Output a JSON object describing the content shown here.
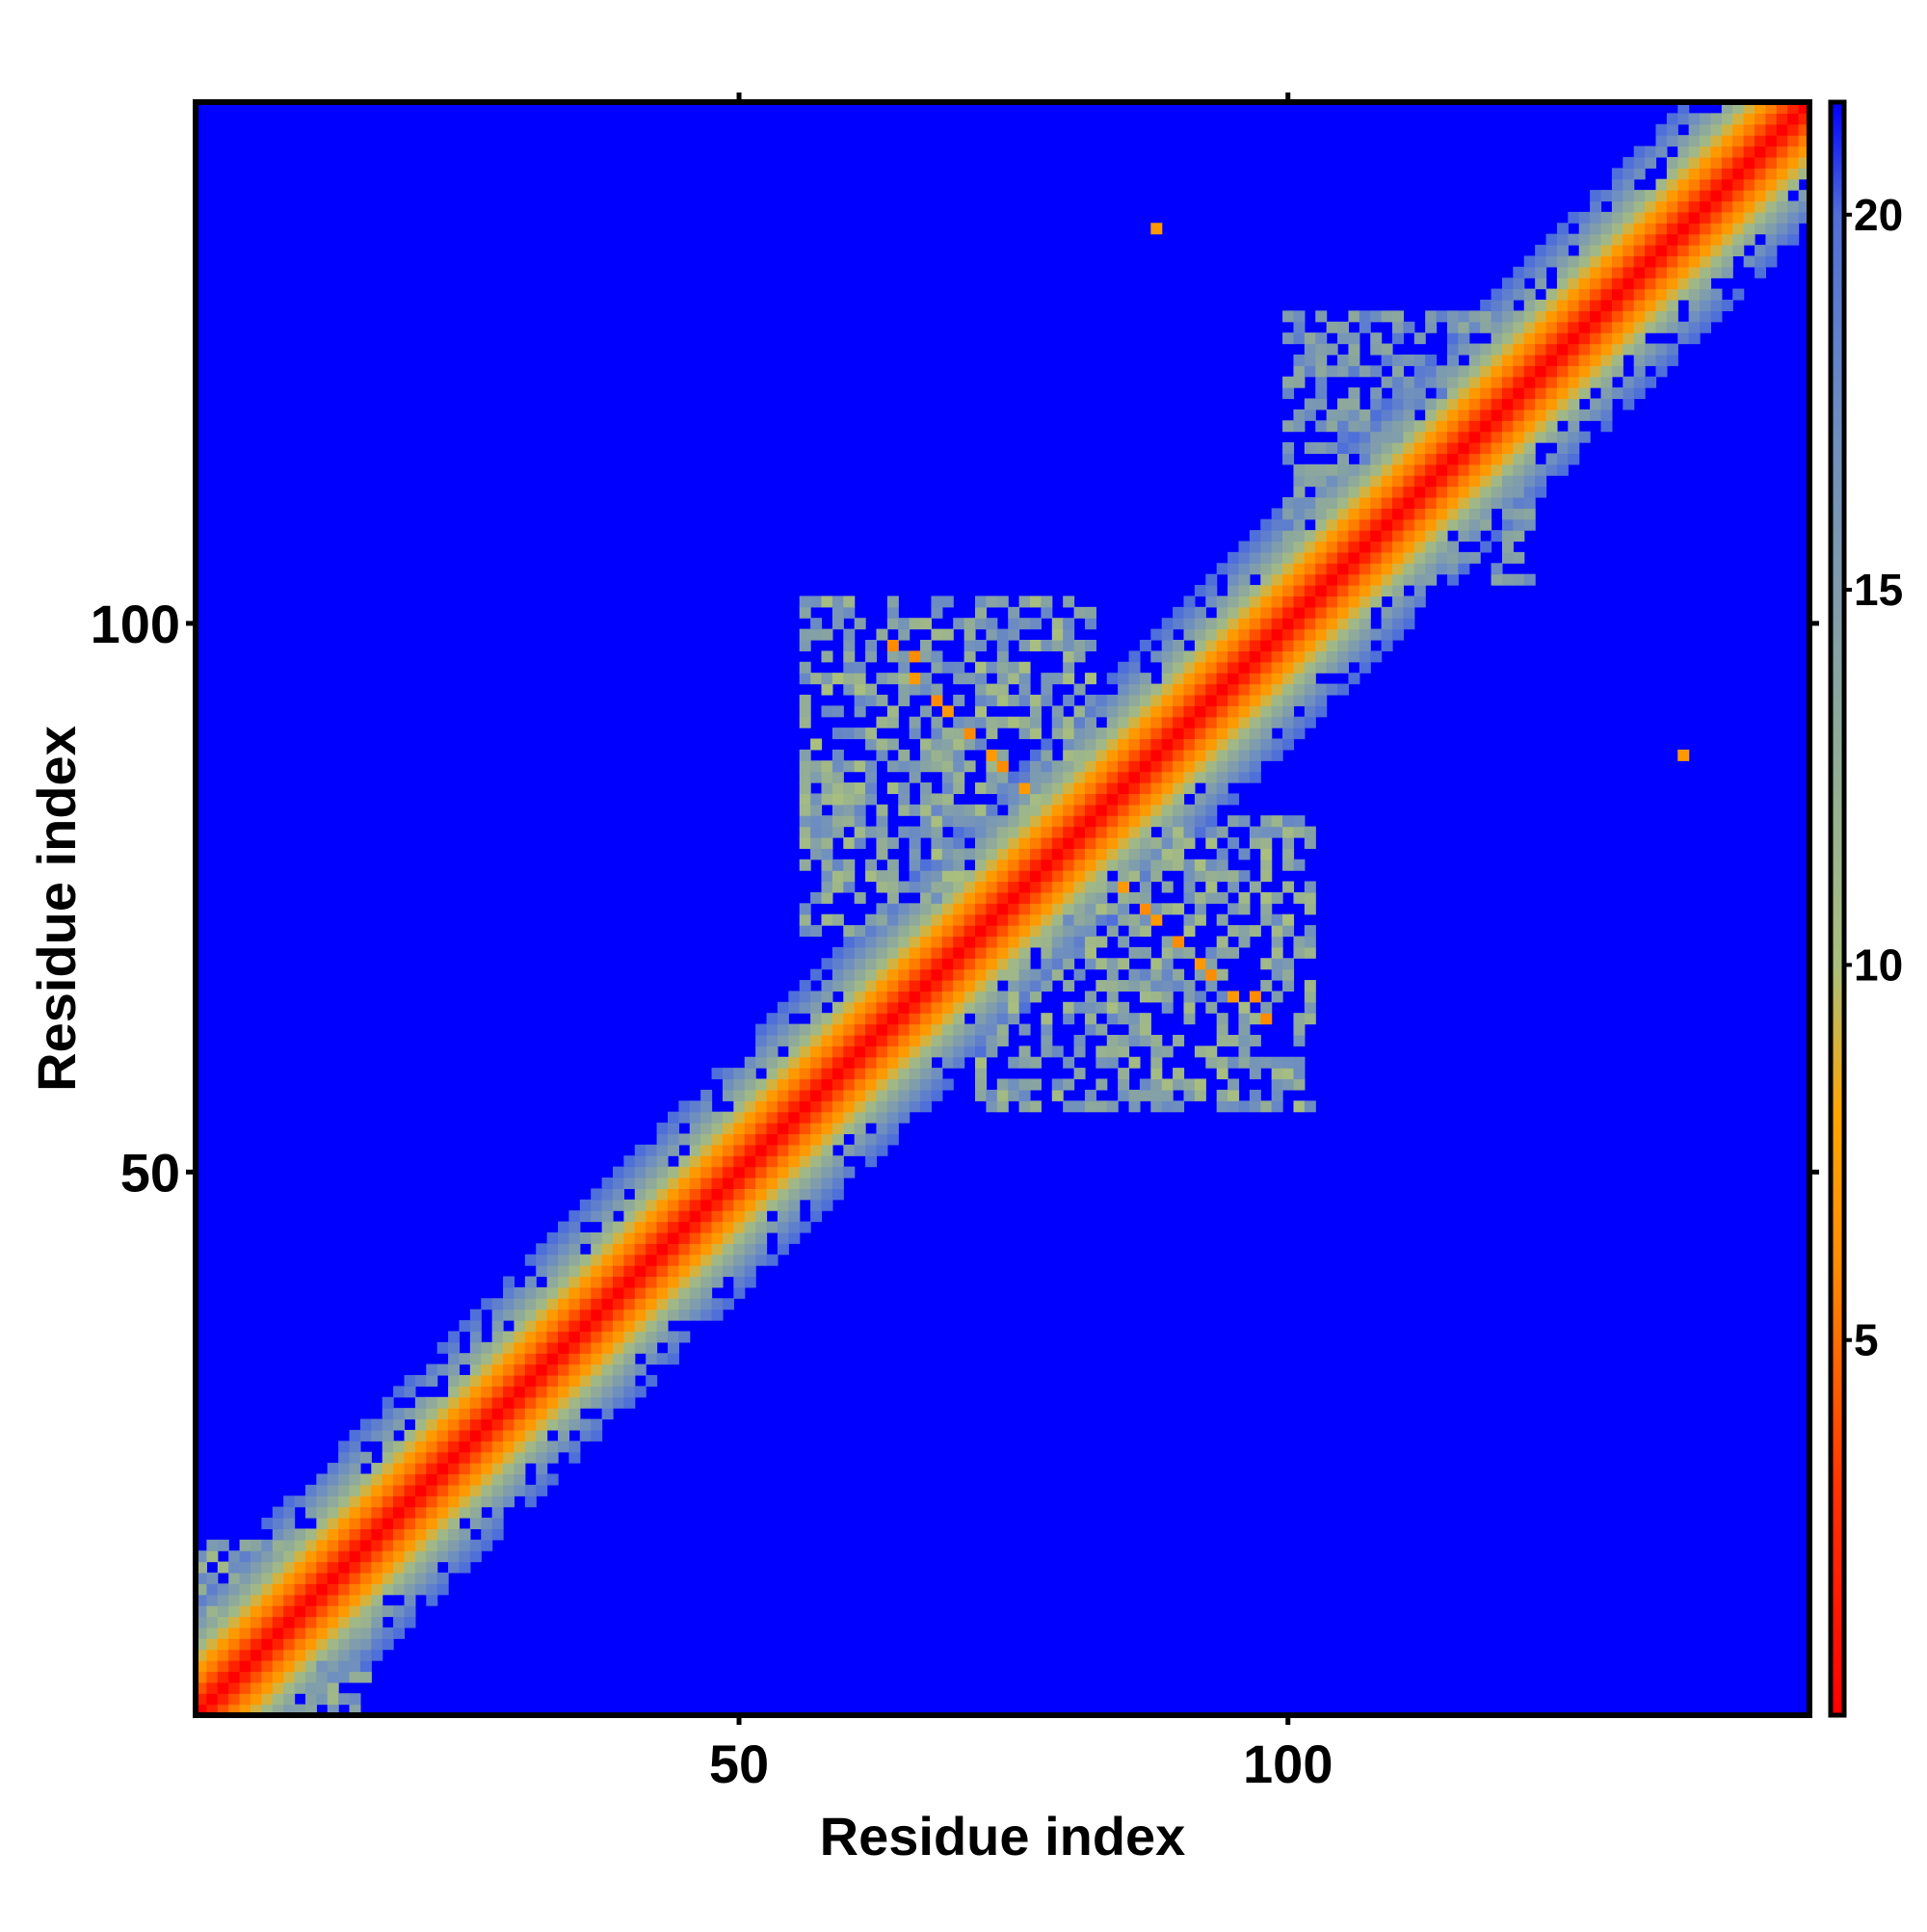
{
  "chart_data": {
    "type": "heatmap",
    "title": "",
    "xlabel": "Residue index",
    "ylabel": "Residue index",
    "n_residues": 147,
    "xlim": [
      1,
      147
    ],
    "ylim": [
      1,
      147
    ],
    "x_ticks": [
      50,
      100
    ],
    "y_ticks": [
      50,
      100
    ],
    "colorbar": {
      "min": 0,
      "max": 21.5,
      "ticks": [
        5,
        10,
        15,
        20
      ],
      "stops": [
        {
          "value": 0,
          "color": "#ff0000"
        },
        {
          "value": 3,
          "color": "#ff3300"
        },
        {
          "value": 6,
          "color": "#ff8c00"
        },
        {
          "value": 8,
          "color": "#ffa500"
        },
        {
          "value": 10,
          "color": "#a9bf7e"
        },
        {
          "value": 13,
          "color": "#8faa9a"
        },
        {
          "value": 17,
          "color": "#6f8fbf"
        },
        {
          "value": 20,
          "color": "#4f6fd9"
        },
        {
          "value": 21.5,
          "color": "#0000ff"
        }
      ]
    },
    "background_value": 21.5,
    "background_color": "#0000ff",
    "diagonal_band": {
      "core_value": 0,
      "half_width_residues": 11,
      "value_by_offset": [
        0,
        2,
        4,
        5.5,
        7,
        9,
        11,
        13,
        15,
        17,
        18.5,
        20
      ]
    },
    "off_diagonal_contacts": [
      {
        "i": 64,
        "j": 98,
        "value": 6
      },
      {
        "i": 66,
        "j": 97,
        "value": 6
      },
      {
        "i": 66,
        "j": 95,
        "value": 7
      },
      {
        "i": 68,
        "j": 93,
        "value": 6
      },
      {
        "i": 69,
        "j": 92,
        "value": 7
      },
      {
        "i": 71,
        "j": 90,
        "value": 6
      },
      {
        "i": 73,
        "j": 88,
        "value": 7
      },
      {
        "i": 74,
        "j": 87,
        "value": 6
      },
      {
        "i": 76,
        "j": 85,
        "value": 7
      },
      {
        "i": 85,
        "j": 76,
        "value": 7
      },
      {
        "i": 87,
        "j": 74,
        "value": 6
      },
      {
        "i": 88,
        "j": 73,
        "value": 7
      },
      {
        "i": 90,
        "j": 71,
        "value": 6
      },
      {
        "i": 92,
        "j": 69,
        "value": 7
      },
      {
        "i": 93,
        "j": 68,
        "value": 6
      },
      {
        "i": 95,
        "j": 66,
        "value": 7
      },
      {
        "i": 97,
        "j": 66,
        "value": 6
      },
      {
        "i": 98,
        "j": 64,
        "value": 6
      },
      {
        "i": 88,
        "j": 136,
        "value": 7
      },
      {
        "i": 136,
        "j": 88,
        "value": 7
      }
    ],
    "contact_wings": [
      {
        "i_range": [
          56,
          82
        ],
        "j_range": [
          72,
          102
        ],
        "value_range": [
          10,
          18
        ]
      },
      {
        "i_range": [
          72,
          102
        ],
        "j_range": [
          56,
          82
        ],
        "value_range": [
          10,
          18
        ]
      },
      {
        "i_range": [
          100,
          122
        ],
        "j_range": [
          104,
          128
        ],
        "value_range": [
          13,
          19
        ]
      },
      {
        "i_range": [
          1,
          16
        ],
        "j_range": [
          1,
          16
        ],
        "value_range": [
          11,
          18
        ]
      }
    ],
    "grid": false,
    "legend": "colorbar-right"
  }
}
